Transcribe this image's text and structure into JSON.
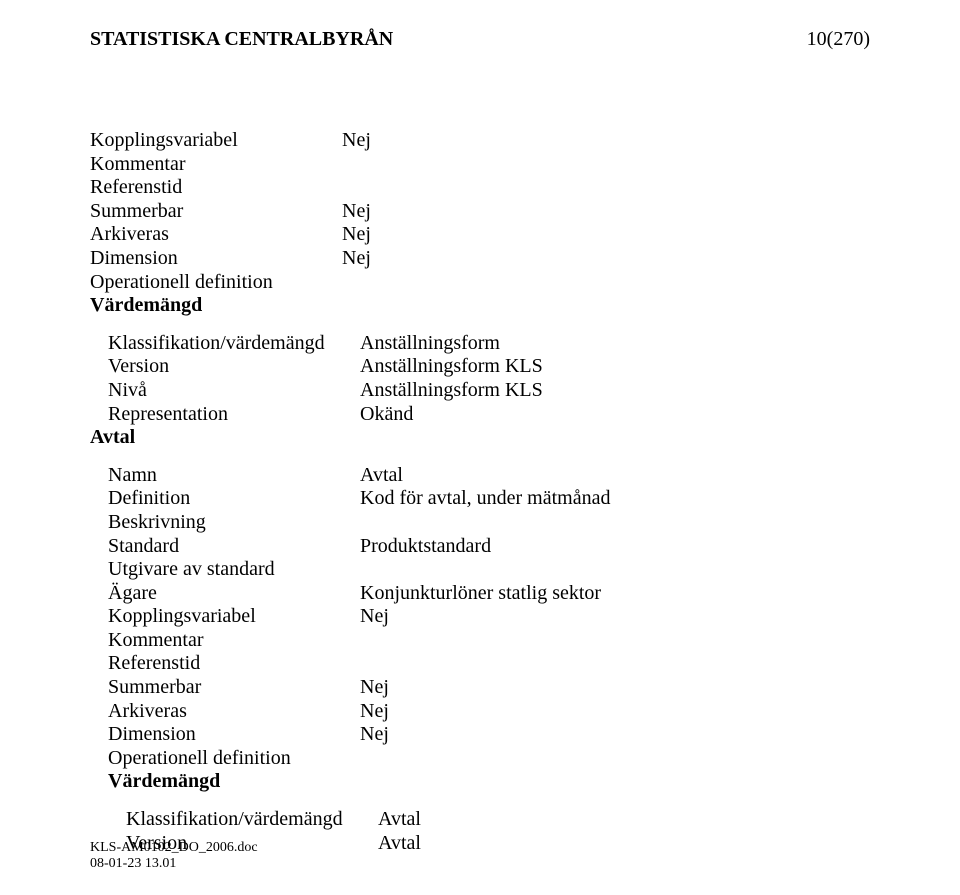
{
  "header": {
    "org": "STATISTISKA CENTRALBYRÅN",
    "page": "10(270)"
  },
  "block1": {
    "rows": [
      {
        "label": "Kopplingsvariabel",
        "value": "Nej",
        "bold": false
      },
      {
        "label": "Kommentar",
        "value": "",
        "bold": false
      },
      {
        "label": "Referenstid",
        "value": "",
        "bold": false
      },
      {
        "label": "Summerbar",
        "value": "Nej",
        "bold": false
      },
      {
        "label": "Arkiveras",
        "value": "Nej",
        "bold": false
      },
      {
        "label": "Dimension",
        "value": "Nej",
        "bold": false
      },
      {
        "label": "Operationell definition",
        "value": "",
        "bold": false
      },
      {
        "label": "Värdemängd",
        "value": "",
        "bold": true
      }
    ]
  },
  "block2": {
    "rows": [
      {
        "label": "Klassifikation/värdemängd",
        "value": "Anställningsform",
        "bold": false
      },
      {
        "label": "Version",
        "value": "Anställningsform KLS",
        "bold": false
      },
      {
        "label": "Nivå",
        "value": "Anställningsform KLS",
        "bold": false
      },
      {
        "label": "Representation",
        "value": "Okänd",
        "bold": false
      }
    ],
    "heading": "Avtal"
  },
  "block3": {
    "rows": [
      {
        "label": "Namn",
        "value": "Avtal",
        "bold": false
      },
      {
        "label": "Definition",
        "value": "Kod för avtal,  under mätmånad",
        "bold": false
      },
      {
        "label": "Beskrivning",
        "value": "",
        "bold": false
      },
      {
        "label": "Standard",
        "value": "Produktstandard",
        "bold": false
      },
      {
        "label": "Utgivare av standard",
        "value": "",
        "bold": false
      },
      {
        "label": "Ägare",
        "value": "Konjunkturlöner statlig sektor",
        "bold": false
      },
      {
        "label": "Kopplingsvariabel",
        "value": "Nej",
        "bold": false
      },
      {
        "label": "Kommentar",
        "value": "",
        "bold": false
      },
      {
        "label": "Referenstid",
        "value": "",
        "bold": false
      },
      {
        "label": "Summerbar",
        "value": "Nej",
        "bold": false
      },
      {
        "label": "Arkiveras",
        "value": "Nej",
        "bold": false
      },
      {
        "label": "Dimension",
        "value": "Nej",
        "bold": false
      },
      {
        "label": "Operationell definition",
        "value": "",
        "bold": false
      },
      {
        "label": "Värdemängd",
        "value": "",
        "bold": true
      }
    ]
  },
  "block4": {
    "rows": [
      {
        "label": "Klassifikation/värdemängd",
        "value": "Avtal",
        "bold": false
      },
      {
        "label": "Version",
        "value": "Avtal",
        "bold": false
      }
    ]
  },
  "footer": {
    "line1": "KLS-AM0102_DO_2006.doc",
    "line2": "08-01-23 13.01"
  }
}
